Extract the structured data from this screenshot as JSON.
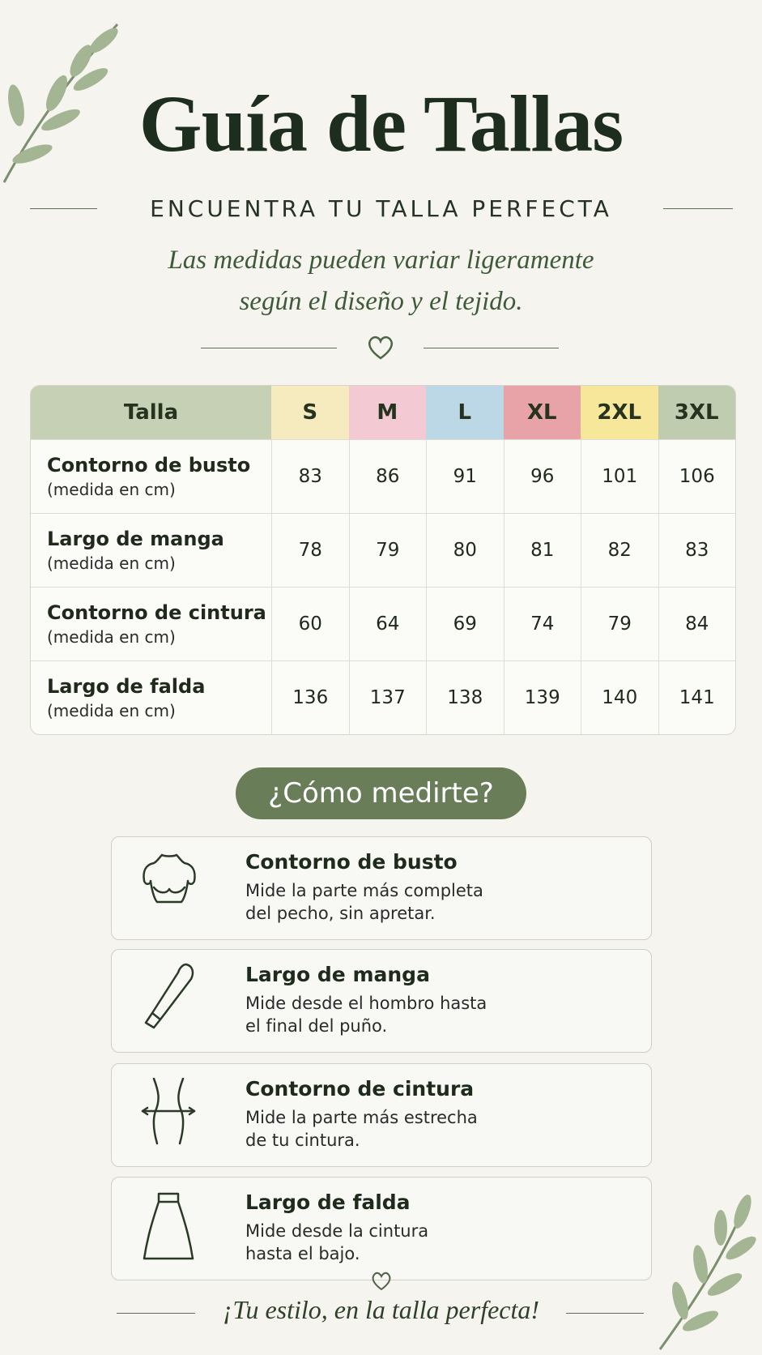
{
  "header": {
    "title": "Guía de Tallas",
    "subtitle": "ENCUENTRA TU TALLA PERFECTA",
    "note": [
      "Las medidas pueden variar ligeramente",
      "según el diseño y el tejido."
    ]
  },
  "table": {
    "header": [
      "Talla",
      "S",
      "M",
      "L",
      "XL",
      "2XL",
      "3XL"
    ],
    "rows": [
      {
        "label": "Contorno de busto",
        "unit": "(medida en cm)",
        "values": [
          83,
          86,
          91,
          96,
          101,
          106
        ]
      },
      {
        "label": "Largo de manga",
        "unit": "(medida en cm)",
        "values": [
          78,
          79,
          80,
          81,
          82,
          83
        ]
      },
      {
        "label": "Contorno de cintura",
        "unit": "(medida en cm)",
        "values": [
          60,
          64,
          69,
          74,
          79,
          84
        ]
      },
      {
        "label": "Largo de falda",
        "unit": "(medida en cm)",
        "values": [
          136,
          137,
          138,
          139,
          140,
          141
        ]
      }
    ]
  },
  "howto": {
    "title": "¿Cómo medirte?",
    "items": [
      {
        "title": "Contorno de busto",
        "lines": [
          "Mide la parte más completa",
          "del pecho, sin apretar."
        ]
      },
      {
        "title": "Largo de manga",
        "lines": [
          "Mide desde el hombro hasta",
          "el final del puño."
        ]
      },
      {
        "title": "Contorno de cintura",
        "lines": [
          "Mide la parte más estrecha",
          "de tu cintura."
        ]
      },
      {
        "title": "Largo de falda",
        "lines": [
          "Mide desde la cintura",
          "hasta el bajo."
        ]
      }
    ]
  },
  "footer": "¡Tu estilo, en la talla perfecta!"
}
